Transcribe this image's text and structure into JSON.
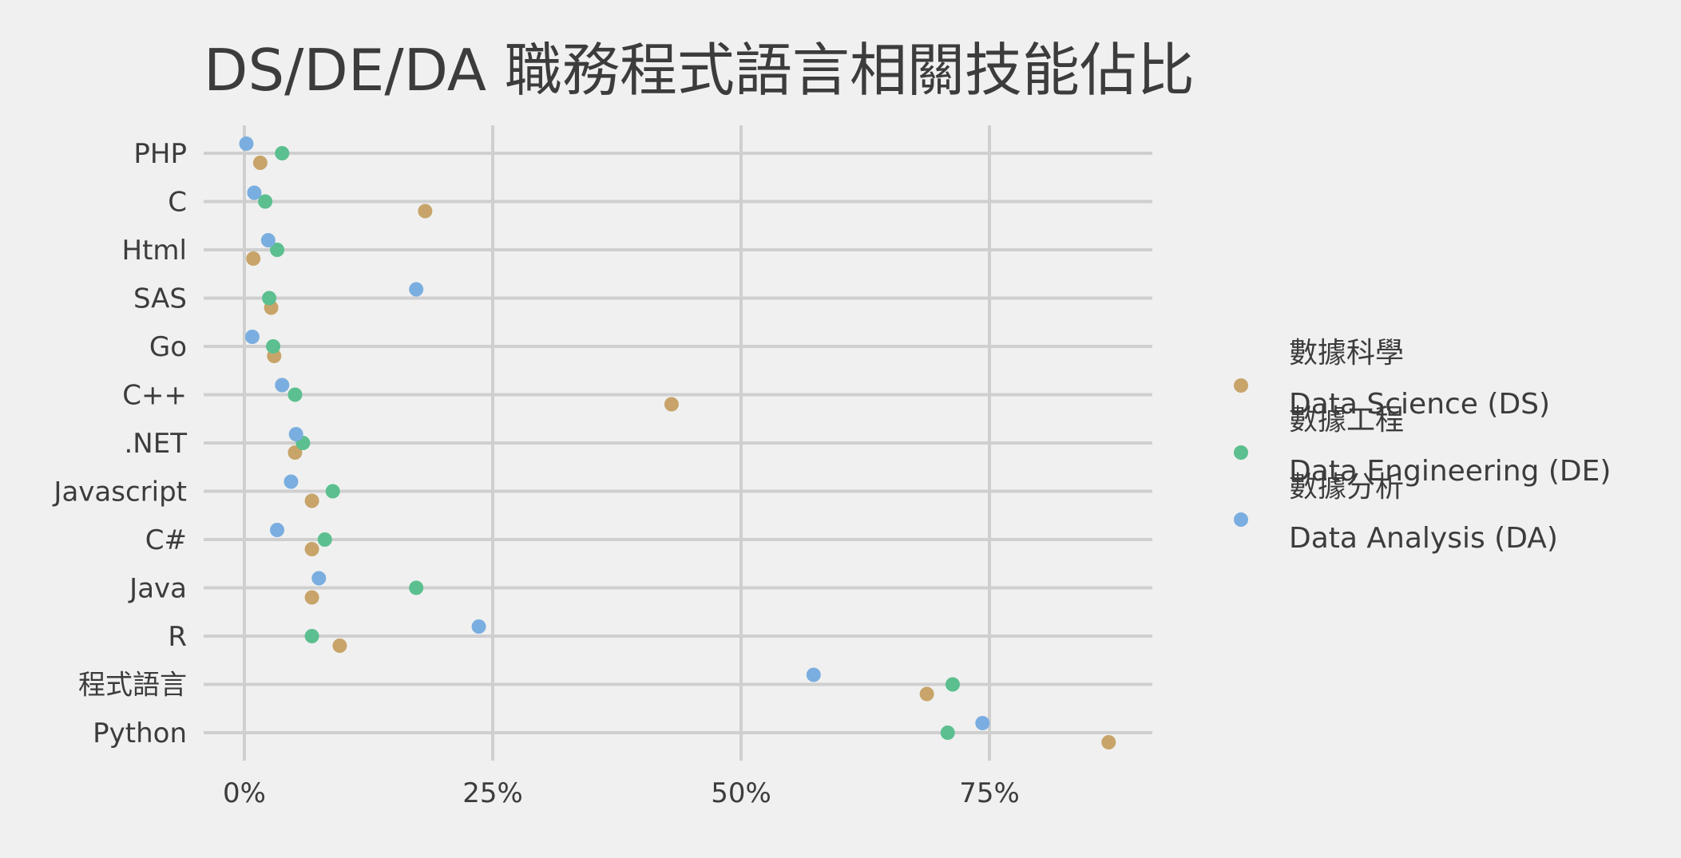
{
  "chart_data": {
    "type": "scatter",
    "title": "DS/DE/DA 職務程式語言相關技能佔比",
    "xlabel": "",
    "ylabel": "",
    "xlim": [
      -0.04,
      0.91
    ],
    "x_ticks": [
      {
        "value": 0,
        "label": "0%"
      },
      {
        "value": 0.25,
        "label": "25%"
      },
      {
        "value": 0.5,
        "label": "50%"
      },
      {
        "value": 0.75,
        "label": "75%"
      }
    ],
    "categories": [
      "PHP",
      "C",
      "Html",
      "SAS",
      "Go",
      "C++",
      ".NET",
      "Javascript",
      "C#",
      "Java",
      "R",
      "程式語言",
      "Python"
    ],
    "grid": true,
    "legend_position": "right",
    "series": [
      {
        "name": "數據科學\nData Science (DS)",
        "legend_lines": [
          "數據科學",
          "Data Science (DS)"
        ],
        "color": "#c8a46a",
        "values": [
          0.016,
          0.182,
          0.009,
          0.027,
          0.03,
          0.43,
          0.051,
          0.068,
          0.068,
          0.068,
          0.096,
          0.687,
          0.87
        ]
      },
      {
        "name": "數據工程\nData Engineering (DE)",
        "legend_lines": [
          "數據工程",
          "Data Engineering (DE)"
        ],
        "color": "#5cbf8f",
        "values": [
          0.038,
          0.021,
          0.033,
          0.025,
          0.029,
          0.051,
          0.059,
          0.089,
          0.081,
          0.173,
          0.068,
          0.713,
          0.708
        ]
      },
      {
        "name": "數據分析\nData Analysis (DA)",
        "legend_lines": [
          "數據分析",
          "Data Analysis (DA)"
        ],
        "color": "#7aaee0",
        "values": [
          0.002,
          0.01,
          0.024,
          0.173,
          0.008,
          0.038,
          0.052,
          0.047,
          0.033,
          0.075,
          0.236,
          0.573,
          0.743
        ]
      }
    ]
  }
}
